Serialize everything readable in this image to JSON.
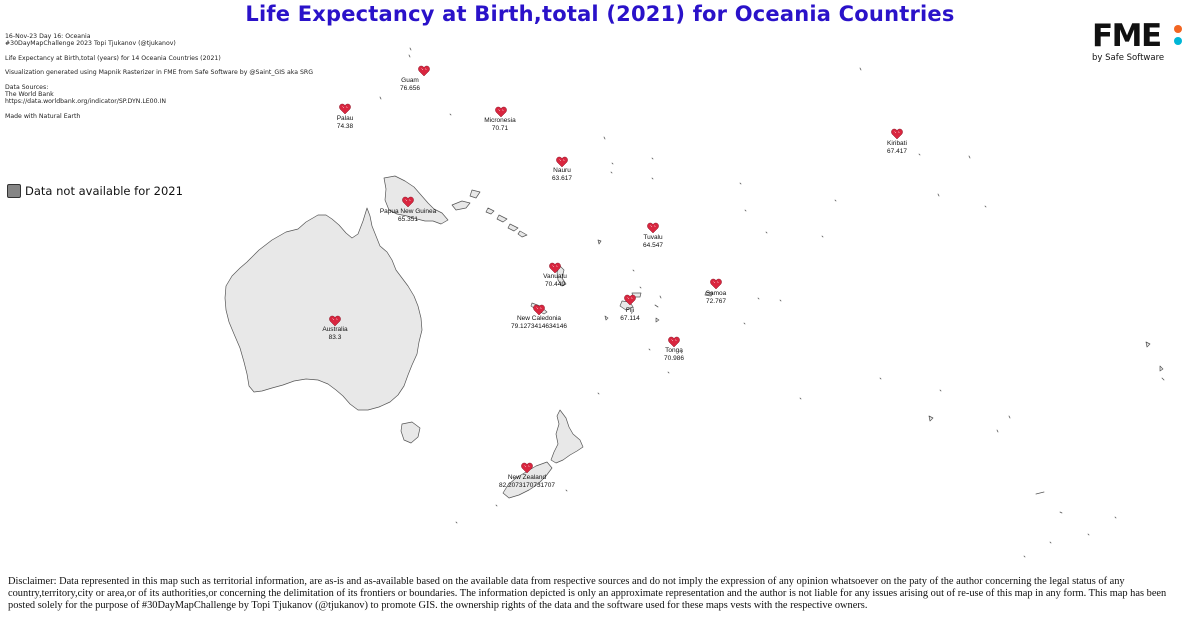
{
  "title": "Life Expectancy at Birth,total (2021) for Oceania Countries",
  "info": {
    "line1": "16-Nov-23 Day 16: Oceania",
    "line2": "#30DayMapChallenge 2023 Topi Tjukanov (@tjukanov)",
    "line3": "Life Expectancy at Birth,total (years) for 14 Oceania Countries (2021)",
    "line4": "Visualization generated using Mapnik Rasterizer in FME from Safe Software by @Saint_GIS aka SRG",
    "line5": "Data Sources:",
    "line6": "The World Bank",
    "line7": "https://data.worldbank.org/indicator/SP.DYN.LE00.IN",
    "line8": "Made with Natural Earth"
  },
  "legend": {
    "label": "Data not available for 2021",
    "color": "#858585"
  },
  "logo": {
    "mark": "FME",
    "sub": "by Safe Software",
    "dot_colors": [
      "#f26522",
      "#00b6d6"
    ]
  },
  "colors": {
    "land": "#e8e8e8",
    "stroke": "#555555",
    "heart": "#d9263f",
    "title": "#2a12c9"
  },
  "countries": [
    {
      "name": "Guam",
      "value": "76.656"
    },
    {
      "name": "Palau",
      "value": "74.38"
    },
    {
      "name": "Micronesia",
      "value": "70.71"
    },
    {
      "name": "Kiribati",
      "value": "67.417"
    },
    {
      "name": "Nauru",
      "value": "63.617"
    },
    {
      "name": "Papua New Guinea",
      "value": "65.351"
    },
    {
      "name": "Tuvalu",
      "value": "64.547"
    },
    {
      "name": "Vanuatu",
      "value": "70.449"
    },
    {
      "name": "Samoa",
      "value": "72.767"
    },
    {
      "name": "Fiji",
      "value": "67.114"
    },
    {
      "name": "New Caledonia",
      "value": "79.1273414634146"
    },
    {
      "name": "Tonga",
      "value": "70.986"
    },
    {
      "name": "Australia",
      "value": "83.3"
    },
    {
      "name": "New Zealand",
      "value": "82.2073170731707"
    }
  ],
  "disclaimer": "Disclaimer: Data represented in this map such as territorial information, are as-is and as-available based on the available data from respective sources and do not imply the expression of any opinion whatsoever on the paty of the author concerning the legal status of any country,territory,city or area,or of its authorities,or concerning the delimitation of its frontiers or boundaries. The information depicted is only an approximate representation and the author is not liable for any issues arising out of re-use of this map in any form. This map has been posted solely for the purpose of #30DayMapChallenge by Topi Tjukanov (@tjukanov) to promote GIS. the ownership rights of the data and the software used for these maps vests with the respective owners."
}
